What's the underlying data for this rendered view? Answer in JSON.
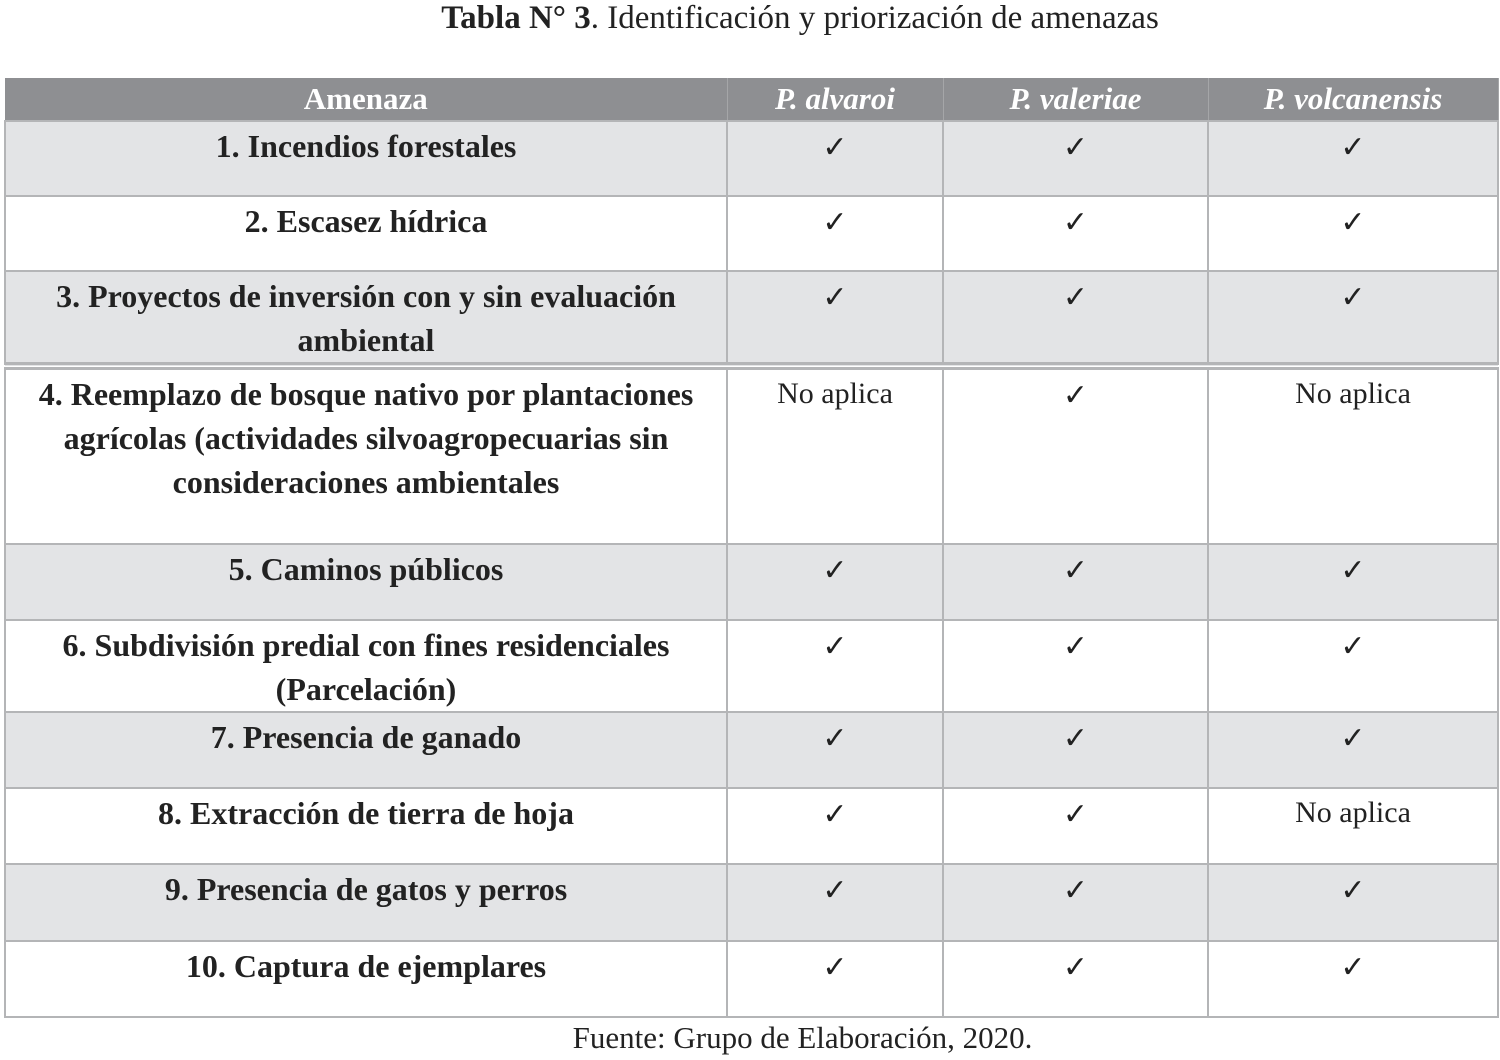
{
  "title": {
    "label": "Tabla N° 3",
    "text": ". Identificación y priorización de amenazas"
  },
  "table": {
    "headers": [
      "Amenaza",
      "P. alvaroi",
      "P. valeriae",
      "P. volcanensis"
    ],
    "check_symbol": "✓",
    "rows": [
      {
        "amenaza": "1.   Incendios forestales",
        "values": [
          "✓",
          "✓",
          "✓"
        ]
      },
      {
        "amenaza": "2.   Escasez hídrica",
        "values": [
          "✓",
          "✓",
          "✓"
        ]
      },
      {
        "amenaza": "3.   Proyectos de inversión con y sin evaluación ambiental",
        "values": [
          "✓",
          "✓",
          "✓"
        ]
      },
      {
        "amenaza": "4.   Reemplazo de bosque nativo por plantaciones agrícolas (actividades silvoagropecuarias sin consideraciones ambientales",
        "values": [
          "No aplica",
          "✓",
          "No aplica"
        ]
      },
      {
        "amenaza": "5.   Caminos públicos",
        "values": [
          "✓",
          "✓",
          "✓"
        ]
      },
      {
        "amenaza": "6.   Subdivisión predial con fines residenciales (Parcelación)",
        "values": [
          "✓",
          "✓",
          "✓"
        ]
      },
      {
        "amenaza": "7.   Presencia de ganado",
        "values": [
          "✓",
          "✓",
          "✓"
        ]
      },
      {
        "amenaza": "8.   Extracción de tierra de hoja",
        "values": [
          "✓",
          "✓",
          "No aplica"
        ]
      },
      {
        "amenaza": "9.   Presencia de gatos y perros",
        "values": [
          "✓",
          "✓",
          "✓"
        ]
      },
      {
        "amenaza": "10. Captura de ejemplares",
        "values": [
          "✓",
          "✓",
          "✓"
        ]
      }
    ]
  },
  "source": "Fuente: Grupo de Elaboración, 2020.",
  "colors": {
    "header_bg": "#8e8f92",
    "shaded_row": "#e3e4e6",
    "border": "#b4b5b7"
  }
}
